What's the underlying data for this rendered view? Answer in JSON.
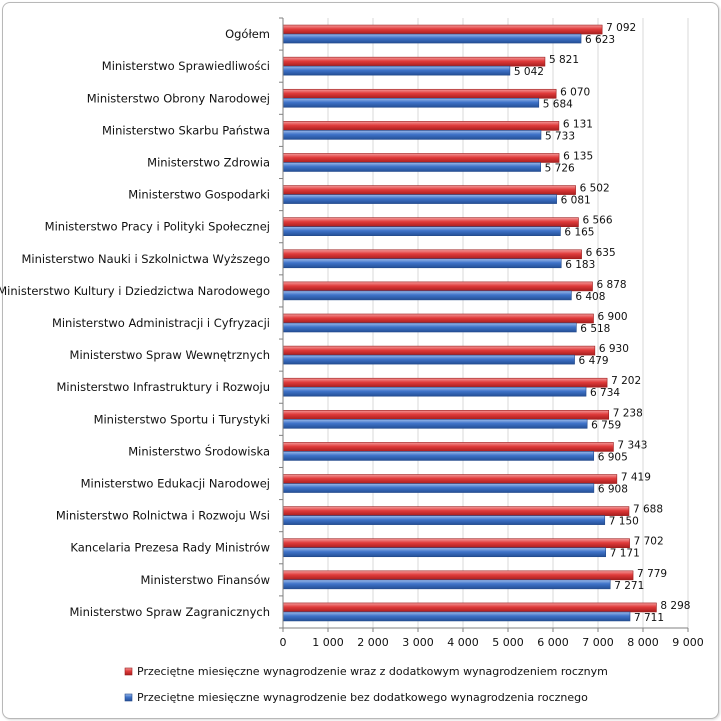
{
  "chart_data": {
    "type": "bar",
    "orientation": "horizontal",
    "categories": [
      "Ogółem",
      "Ministerstwo Sprawiedliwości",
      "Ministerstwo Obrony Narodowej",
      "Ministerstwo Skarbu Państwa",
      "Ministerstwo Zdrowia",
      "Ministerstwo Gospodarki",
      "Ministerstwo Pracy i Polityki Społecznej",
      "Ministerstwo Nauki i Szkolnictwa Wyższego",
      "Ministerstwo Kultury i Dziedzictwa Narodowego",
      "Ministerstwo Administracji i Cyfryzacji",
      "Ministerstwo Spraw Wewnętrznych",
      "Ministerstwo Infrastruktury i Rozwoju",
      "Ministerstwo Sportu i Turystyki",
      "Ministerstwo Środowiska",
      "Ministerstwo Edukacji Narodowej",
      "Ministerstwo Rolnictwa i Rozwoju Wsi",
      "Kancelaria Prezesa Rady Ministrów",
      "Ministerstwo Finansów",
      "Ministerstwo Spraw Zagranicznych"
    ],
    "series": [
      {
        "name": "Przeciętne miesięczne wynagrodzenie wraz z dodatkowym wynagrodzeniem rocznym",
        "color": "#e03b3b",
        "values": [
          7092,
          5821,
          6070,
          6131,
          6135,
          6502,
          6566,
          6635,
          6878,
          6900,
          6930,
          7202,
          7238,
          7343,
          7419,
          7688,
          7702,
          7779,
          8298
        ],
        "labels": [
          "7 092",
          "5 821",
          "6 070",
          "6 131",
          "6 135",
          "6 502",
          "6 566",
          "6 635",
          "6 878",
          "6 900",
          "6 930",
          "7 202",
          "7 238",
          "7 343",
          "7 419",
          "7 688",
          "7 702",
          "7 779",
          "8 298"
        ]
      },
      {
        "name": "Przeciętne miesięczne wynagrodzenie bez dodatkowego wynagrodzenia rocznego",
        "color": "#3f73c9",
        "values": [
          6623,
          5042,
          5684,
          5733,
          5726,
          6081,
          6165,
          6183,
          6408,
          6518,
          6479,
          6734,
          6759,
          6905,
          6908,
          7150,
          7171,
          7271,
          7711
        ],
        "labels": [
          "6 623",
          "5 042",
          "5 684",
          "5 733",
          "5 726",
          "6 081",
          "6 165",
          "6 183",
          "6 408",
          "6 518",
          "6 479",
          "6 734",
          "6 759",
          "6 905",
          "6 908",
          "7 150",
          "7 171",
          "7 271",
          "7 711"
        ]
      }
    ],
    "xlim": [
      0,
      9000
    ],
    "xticks": [
      0,
      1000,
      2000,
      3000,
      4000,
      5000,
      6000,
      7000,
      8000,
      9000
    ],
    "xtick_labels": [
      "0",
      "1 000",
      "2 000",
      "3 000",
      "4 000",
      "5 000",
      "6 000",
      "7 000",
      "8 000",
      "9 000"
    ],
    "title": "",
    "xlabel": "",
    "ylabel": "",
    "grid": true,
    "legend_position": "bottom"
  }
}
